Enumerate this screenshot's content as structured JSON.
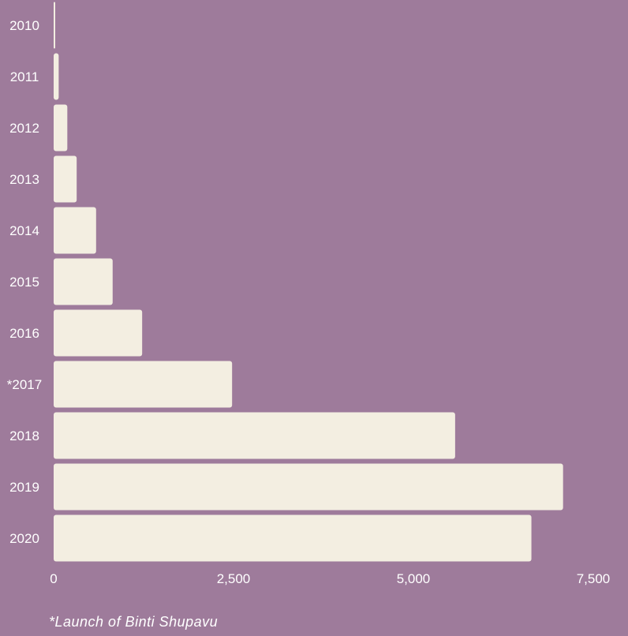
{
  "chart_data": {
    "type": "bar",
    "orientation": "horizontal",
    "categories": [
      "2010",
      "2011",
      "2012",
      "2013",
      "2014",
      "2015",
      "2016",
      "*2017",
      "2018",
      "2019",
      "2020"
    ],
    "values": [
      5,
      70,
      190,
      320,
      590,
      820,
      1230,
      2480,
      5580,
      7080,
      6640
    ],
    "xlim": [
      0,
      7500
    ],
    "xticks": [
      "0",
      "2,500",
      "5,000",
      "7,500"
    ],
    "xtick_values": [
      0,
      2500,
      5000,
      7500
    ],
    "title": "",
    "xlabel": "",
    "ylabel": "",
    "grid": false,
    "colors": {
      "background": "#9e7b9b",
      "bar": "#f3eee1",
      "text": "#ffffff"
    }
  },
  "footnote": "*Launch of Binti Shupavu"
}
